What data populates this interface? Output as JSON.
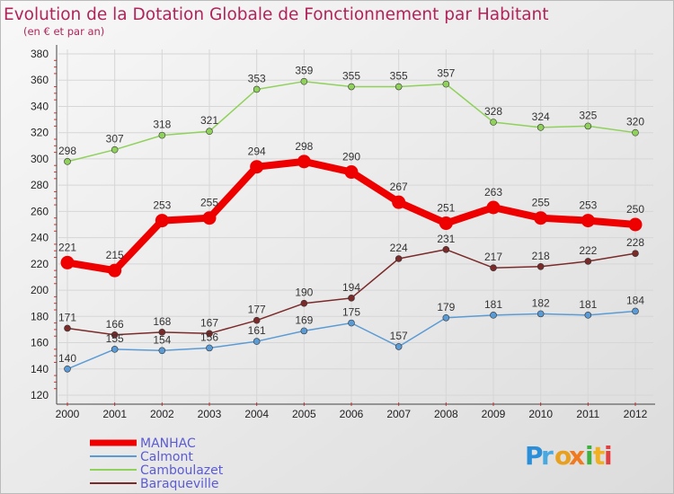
{
  "chart_data": {
    "type": "line",
    "title": "Evolution de la Dotation Globale de Fonctionnement par Habitant",
    "subtitle": "(en € et par an)",
    "xlabel": "",
    "ylabel": "",
    "x": [
      "2000",
      "2001",
      "2002",
      "2003",
      "2004",
      "2005",
      "2006",
      "2007",
      "2008",
      "2009",
      "2010",
      "2011",
      "2012"
    ],
    "yticks": [
      "120",
      "140",
      "160",
      "180",
      "200",
      "220",
      "240",
      "260",
      "280",
      "300",
      "320",
      "340",
      "360",
      "380"
    ],
    "ylim": [
      120,
      380
    ],
    "grid": true,
    "series": [
      {
        "name": "MANHAC",
        "color": "#ee0000",
        "highlight": true,
        "values": [
          221,
          215,
          253,
          255,
          294,
          298,
          290,
          267,
          251,
          263,
          255,
          253,
          250
        ]
      },
      {
        "name": "Calmont",
        "color": "#5b9bd5",
        "highlight": false,
        "values": [
          140,
          155,
          154,
          156,
          161,
          169,
          175,
          157,
          179,
          181,
          182,
          181,
          184
        ]
      },
      {
        "name": "Camboulazet",
        "color": "#8fd15a",
        "highlight": false,
        "values": [
          298,
          307,
          318,
          321,
          353,
          359,
          355,
          355,
          357,
          328,
          324,
          325,
          320
        ]
      },
      {
        "name": "Baraqueville",
        "color": "#7b2a2a",
        "highlight": false,
        "values": [
          171,
          166,
          168,
          167,
          177,
          190,
          194,
          224,
          231,
          217,
          218,
          222,
          228
        ]
      }
    ],
    "labels": {
      "MANHAC": [
        "221",
        "215",
        "253",
        "255",
        "294",
        "298",
        "290",
        "267",
        "251",
        "263",
        "255",
        "253",
        "250"
      ],
      "Calmont": [
        "140",
        "155",
        "154",
        "156",
        "161",
        "169",
        "175",
        "157",
        "179",
        "181",
        "182",
        "181",
        "184"
      ],
      "Camboulazet": [
        "298",
        "307",
        "318",
        "321",
        "353",
        "359",
        "355",
        "355",
        "357",
        "328",
        "324",
        "325",
        "320"
      ],
      "Baraqueville": [
        "171",
        "166",
        "168",
        "167",
        "177",
        "190",
        "194",
        "224",
        "231",
        "217",
        "218",
        "222",
        "228"
      ]
    },
    "legend": [
      "MANHAC",
      "Calmont",
      "Camboulazet",
      "Baraqueville"
    ]
  },
  "brand": {
    "logo_text": "Proxiti"
  }
}
